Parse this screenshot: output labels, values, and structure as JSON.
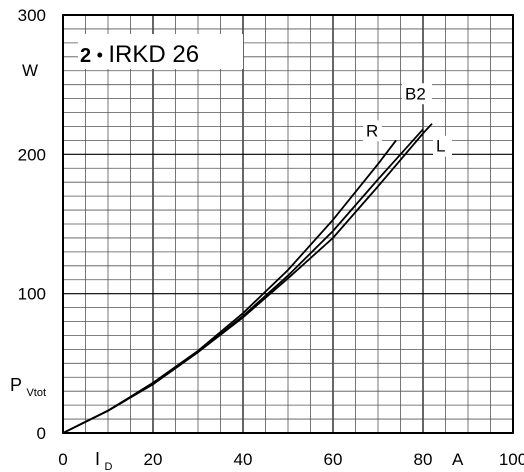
{
  "chart_data": {
    "type": "line",
    "title": "",
    "device": {
      "prefix": "2",
      "bullet": "•",
      "name": "IRKD 26"
    },
    "xlabel": {
      "symbol": "I",
      "subscript": "D",
      "unit": "A"
    },
    "ylabel": {
      "symbol": "P",
      "subscript": "Vtot",
      "unit": "W"
    },
    "xlim": [
      0,
      100
    ],
    "ylim": [
      0,
      300
    ],
    "x_ticks": [
      0,
      20,
      40,
      60,
      80,
      100
    ],
    "y_ticks": [
      0,
      100,
      200,
      300
    ],
    "grid": true,
    "series": [
      {
        "name": "R",
        "values": [
          [
            0,
            0
          ],
          [
            10,
            16
          ],
          [
            20,
            36
          ],
          [
            30,
            59
          ],
          [
            40,
            86
          ],
          [
            50,
            117
          ],
          [
            60,
            153
          ],
          [
            70,
            193
          ],
          [
            74,
            210
          ]
        ]
      },
      {
        "name": "B2",
        "values": [
          [
            0,
            0
          ],
          [
            10,
            16
          ],
          [
            20,
            35
          ],
          [
            30,
            58
          ],
          [
            40,
            84
          ],
          [
            50,
            113
          ],
          [
            60,
            145
          ],
          [
            70,
            182
          ],
          [
            80,
            218
          ]
        ]
      },
      {
        "name": "L",
        "values": [
          [
            0,
            0
          ],
          [
            10,
            16
          ],
          [
            20,
            35
          ],
          [
            30,
            58
          ],
          [
            40,
            83
          ],
          [
            50,
            111
          ],
          [
            60,
            140
          ],
          [
            70,
            177
          ],
          [
            80,
            215
          ],
          [
            82,
            222
          ]
        ]
      }
    ]
  }
}
